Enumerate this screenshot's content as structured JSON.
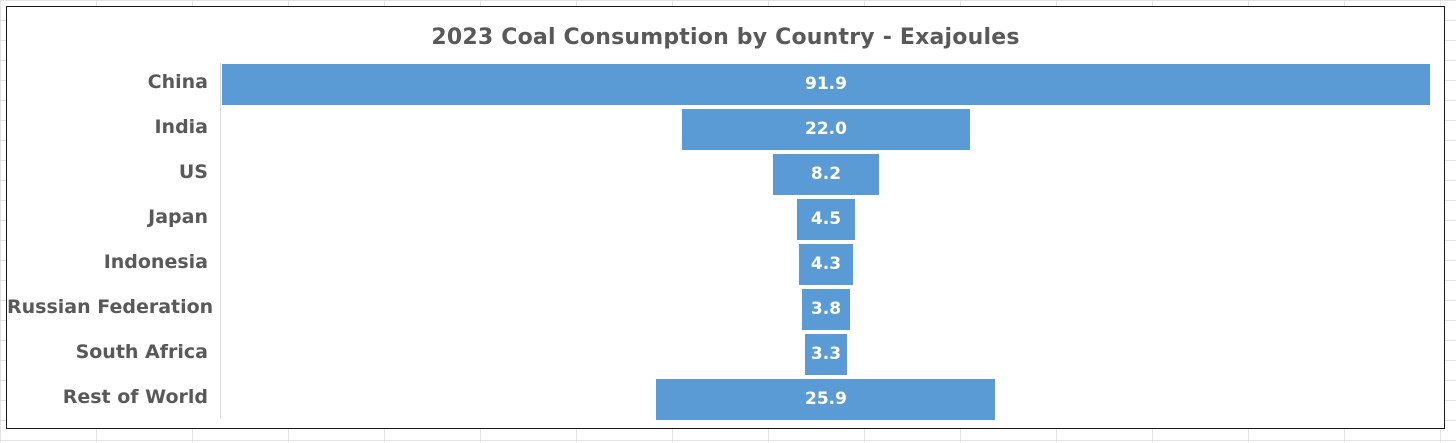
{
  "chart_data": {
    "type": "bar",
    "orientation": "horizontal-centered-funnel",
    "title": "2023 Coal Consumption by Country - Exajoules",
    "categories": [
      "China",
      "India",
      "US",
      "Japan",
      "Indonesia",
      "Russian Federation",
      "South Africa",
      "Rest of World"
    ],
    "values": [
      91.9,
      22.0,
      8.2,
      4.5,
      4.3,
      3.8,
      3.3,
      25.9
    ],
    "value_labels": [
      "91.9",
      "22.0",
      "8.2",
      "4.5",
      "4.3",
      "3.8",
      "3.3",
      "25.9"
    ],
    "bar_color": "#5b9bd5",
    "xlabel": "",
    "ylabel": "",
    "grid": false,
    "legend": "none"
  }
}
